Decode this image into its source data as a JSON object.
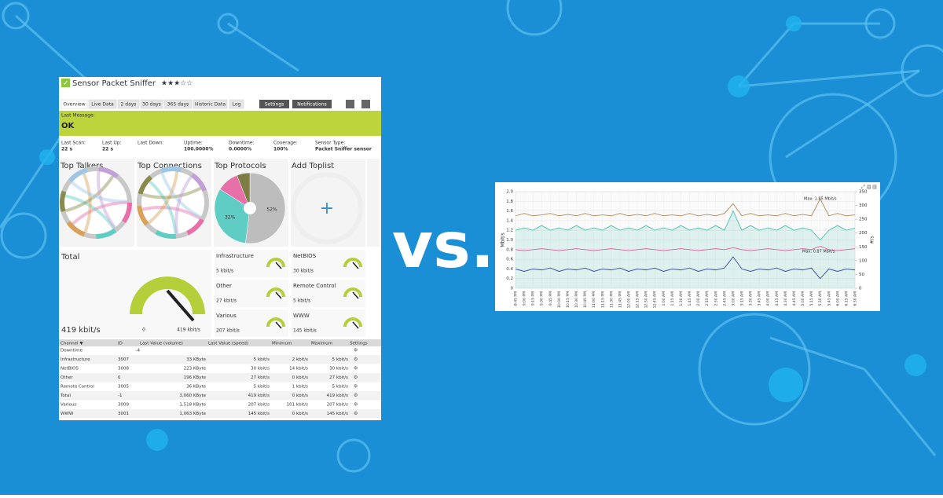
{
  "panel": {
    "title": "Sensor Packet Sniffer",
    "tabs": [
      "Overview",
      "Live Data",
      "2 days",
      "30 days",
      "365 days",
      "Historic Data",
      "Log"
    ],
    "buttons": [
      "Settings",
      "Notifications"
    ],
    "status_label": "Last Message:",
    "status": "OK",
    "stats": [
      {
        "label": "Last Scan:",
        "value": "22 s"
      },
      {
        "label": "Last Up:",
        "value": "22 s"
      },
      {
        "label": "Last Down:"
      },
      {
        "label": "Uptime:",
        "value": "100.0000%"
      },
      {
        "label": "Downtime:",
        "value": "0.0000%"
      },
      {
        "label": "Coverage:",
        "value": "100%"
      },
      {
        "label": "Sensor Type:",
        "value": "Packet Sniffer sensor"
      }
    ],
    "widgets": [
      "Top Talkers",
      "Top Connections",
      "Top Protocols",
      "Add Toplist"
    ],
    "protocols_pie": {
      "values": [
        52,
        32,
        10,
        6
      ],
      "value_labels": [
        "52%",
        "32%",
        null,
        null
      ],
      "colors": [
        "#bdbdbd",
        "#5fcdc4",
        "#e96fa8",
        "#7d7d45"
      ]
    },
    "total": {
      "title": "Total",
      "value": "419 kbit/s",
      "min": "0",
      "max": "419 kbit/s"
    },
    "gauges": [
      {
        "name": "Infrastructure",
        "value": "5 kbit/s"
      },
      {
        "name": "NetBIOS",
        "value": "30 kbit/s"
      },
      {
        "name": "Other",
        "value": "27 kbit/s"
      },
      {
        "name": "Remote Control",
        "value": "5 kbit/s"
      },
      {
        "name": "Various",
        "value": "207 kbit/s"
      },
      {
        "name": "WWW",
        "value": "145 kbit/s"
      }
    ],
    "table": {
      "headers": [
        "Channel ▼",
        "ID",
        "Last Value (volume)",
        "Last Value (speed)",
        "Minimum",
        "Maximum",
        "Settings"
      ],
      "rows": [
        [
          "Downtime",
          "-4"
        ],
        [
          "Infrastructure",
          "3007",
          "33 KByte",
          "5 kbit/s",
          "2 kbit/s",
          "5 kbit/s"
        ],
        [
          "NetBIOS",
          "3008",
          "223 KByte",
          "30 kbit/s",
          "14 kbit/s",
          "30 kbit/s"
        ],
        [
          "Other",
          "0",
          "196 KByte",
          "27 kbit/s",
          "0 kbit/s",
          "27 kbit/s"
        ],
        [
          "Remote Control",
          "3005",
          "36 KByte",
          "5 kbit/s",
          "1 kbit/s",
          "5 kbit/s"
        ],
        [
          "Total",
          "-1",
          "3,060 KByte",
          "419 kbit/s",
          "0 kbit/s",
          "419 kbit/s"
        ],
        [
          "Various",
          "3009",
          "1,518 KByte",
          "207 kbit/s",
          "101 kbit/s",
          "207 kbit/s"
        ],
        [
          "WWW",
          "3001",
          "1,063 KByte",
          "145 kbit/s",
          "0 kbit/s",
          "145 kbit/s"
        ]
      ]
    }
  },
  "vs": "vs.",
  "chart_data": {
    "type": "line",
    "ylabel": "Mbit/s",
    "y2label": "#/s",
    "x": [
      "8:45 PM",
      "9:00 PM",
      "9:15 PM",
      "9:30 PM",
      "9:45 PM",
      "10:00 PM",
      "10:15 PM",
      "10:30 PM",
      "10:45 PM",
      "11:00 PM",
      "11:15 PM",
      "11:30 PM",
      "11:45 PM",
      "12:00 AM",
      "12:15 AM",
      "12:30 AM",
      "12:45 AM",
      "1:00 AM",
      "1:15 AM",
      "1:30 AM",
      "1:45 AM",
      "2:00 AM",
      "2:15 AM",
      "2:30 AM",
      "2:45 AM",
      "3:00 AM",
      "3:15 AM",
      "3:30 AM",
      "3:45 AM",
      "4:00 AM",
      "4:15 AM",
      "4:30 AM",
      "4:45 AM",
      "5:00 AM",
      "5:15 AM",
      "5:30 AM",
      "5:45 AM",
      "6:00 AM",
      "6:15 AM",
      "6:30 AM"
    ],
    "series": [
      {
        "color": "#b08a5a",
        "values": [
          1.5,
          1.55,
          1.5,
          1.52,
          1.55,
          1.5,
          1.53,
          1.5,
          1.55,
          1.5,
          1.52,
          1.5,
          1.55,
          1.5,
          1.53,
          1.5,
          1.55,
          1.5,
          1.52,
          1.5,
          1.55,
          1.5,
          1.53,
          1.5,
          1.55,
          1.75,
          1.5,
          1.55,
          1.5,
          1.52,
          1.5,
          1.55,
          1.5,
          1.53,
          1.5,
          1.85,
          1.5,
          1.55,
          1.5,
          1.52
        ]
      },
      {
        "color": "#4cc0b0",
        "values": [
          1.2,
          1.25,
          1.2,
          1.3,
          1.2,
          1.25,
          1.2,
          1.3,
          1.2,
          1.25,
          1.2,
          1.3,
          1.2,
          1.25,
          1.2,
          1.3,
          1.2,
          1.25,
          1.2,
          1.3,
          1.2,
          1.25,
          1.2,
          1.3,
          1.2,
          1.6,
          1.2,
          1.3,
          1.2,
          1.25,
          1.2,
          1.3,
          1.2,
          1.25,
          1.2,
          1.0,
          1.2,
          1.3,
          1.2,
          1.25
        ]
      },
      {
        "color": "#e060a0",
        "values": [
          0.8,
          0.78,
          0.8,
          0.82,
          0.8,
          0.78,
          0.8,
          0.82,
          0.8,
          0.78,
          0.8,
          0.82,
          0.8,
          0.78,
          0.8,
          0.82,
          0.8,
          0.78,
          0.8,
          0.82,
          0.8,
          0.78,
          0.8,
          0.82,
          0.8,
          0.84,
          0.8,
          0.78,
          0.8,
          0.82,
          0.8,
          0.78,
          0.8,
          0.82,
          0.8,
          0.87,
          0.8,
          0.78,
          0.8,
          0.82
        ]
      },
      {
        "color": "#3050a0",
        "values": [
          0.4,
          0.35,
          0.4,
          0.38,
          0.42,
          0.35,
          0.4,
          0.38,
          0.42,
          0.35,
          0.4,
          0.38,
          0.42,
          0.35,
          0.4,
          0.38,
          0.42,
          0.35,
          0.4,
          0.38,
          0.42,
          0.35,
          0.4,
          0.38,
          0.42,
          0.65,
          0.4,
          0.35,
          0.4,
          0.38,
          0.42,
          0.35,
          0.4,
          0.38,
          0.42,
          0.2,
          0.4,
          0.35,
          0.4,
          0.38
        ]
      }
    ],
    "ylim": [
      0,
      2
    ],
    "yticks": [
      0,
      0.2,
      0.4,
      0.6,
      0.8,
      {
        "value": 1,
        "label": "1.0"
      },
      1.2,
      1.4,
      1.6,
      1.8,
      {
        "value": 2,
        "label": "2.0"
      }
    ],
    "y2lim": [
      0,
      350
    ],
    "y2ticks": [
      0,
      50,
      100,
      150,
      200,
      250,
      300,
      350
    ],
    "grid": true,
    "annotations": [
      "Max: 1.85 Mbit/s",
      "Max: 0.87 Mbit/s"
    ]
  }
}
